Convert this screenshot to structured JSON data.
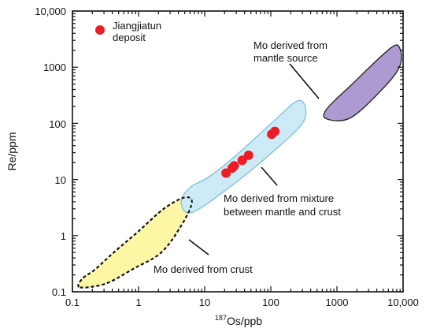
{
  "chart_data": {
    "type": "scatter",
    "xscale": "log",
    "yscale": "log",
    "xlim": [
      0.1,
      10000
    ],
    "ylim": [
      0.1,
      10000
    ],
    "xlabel_sup": "187",
    "xlabel_main": "Os/ppb",
    "ylabel": "Re/ppm",
    "x_ticks": [
      "0.1",
      "1",
      "10",
      "100",
      "1000",
      "10,000"
    ],
    "y_ticks": [
      "0.1",
      "1",
      "10",
      "100",
      "1000",
      "10,000"
    ],
    "legend": {
      "label_line1": "Jiangjiatun",
      "label_line2": "deposit",
      "color": "#ee1c25",
      "placement": "top-left"
    },
    "series": [
      {
        "name": "Jiangjiatun deposit",
        "color": "#ee1c25",
        "points": [
          {
            "x": 21,
            "y": 13
          },
          {
            "x": 26,
            "y": 16
          },
          {
            "x": 28,
            "y": 17.5
          },
          {
            "x": 37,
            "y": 22
          },
          {
            "x": 46,
            "y": 27
          },
          {
            "x": 103,
            "y": 64
          },
          {
            "x": 115,
            "y": 72
          }
        ]
      }
    ],
    "regions": [
      {
        "id": "crust",
        "label": "Mo derived from crust",
        "fill": "#fdf6a5",
        "stroke": "#111111",
        "dashed": true,
        "outline": [
          [
            0.13,
            0.12
          ],
          [
            0.32,
            0.14
          ],
          [
            0.85,
            0.26
          ],
          [
            2.2,
            0.5
          ],
          [
            4.4,
            1.5
          ],
          [
            6.4,
            3.8
          ],
          [
            5.0,
            4.8
          ],
          [
            2.4,
            3.0
          ],
          [
            1.0,
            1.2
          ],
          [
            0.42,
            0.5
          ],
          [
            0.22,
            0.25
          ],
          [
            0.14,
            0.17
          ]
        ]
      },
      {
        "id": "mixture",
        "label_line1": "Mo derived from mixture",
        "label_line2": "between mantle and crust",
        "fill": "#cdebf7",
        "stroke": "#7fbfd8",
        "dashed": false,
        "outline": [
          [
            4.4,
            4.0
          ],
          [
            6.5,
            2.6
          ],
          [
            30,
            9
          ],
          [
            120,
            35
          ],
          [
            300,
            100
          ],
          [
            330,
            200
          ],
          [
            250,
            250
          ],
          [
            120,
            120
          ],
          [
            30,
            27
          ],
          [
            12,
            11.5
          ],
          [
            6,
            7.2
          ]
        ]
      },
      {
        "id": "mantle",
        "label_line1": "Mo derived from",
        "label_line2": "mantle source",
        "fill": "#ad9ad0",
        "stroke": "#222222",
        "dashed": false,
        "outline": [
          [
            700,
            120
          ],
          [
            1600,
            125
          ],
          [
            4800,
            400
          ],
          [
            8800,
            1000
          ],
          [
            9000,
            2100
          ],
          [
            6500,
            2200
          ],
          [
            1700,
            500
          ],
          [
            700,
            180
          ]
        ]
      }
    ]
  }
}
